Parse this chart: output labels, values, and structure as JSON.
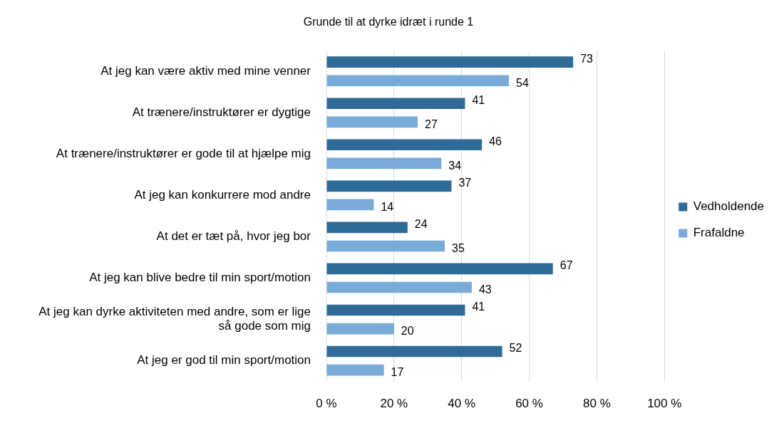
{
  "chart_data": {
    "type": "bar",
    "orientation": "horizontal",
    "title": "Grunde til at dyrke idræt i runde 1",
    "categories": [
      "At jeg kan være aktiv med mine venner",
      "At trænere/instruktører er dygtige",
      "At trænere/instruktører er gode til at hjælpe mig",
      "At jeg kan konkurrere mod andre",
      "At det er tæt på, hvor jeg bor",
      "At jeg kan blive bedre til min sport/motion",
      "At jeg kan dyrke aktiviteten med andre, som er lige så gode som mig",
      "At jeg er god til min sport/motion"
    ],
    "series": [
      {
        "name": "Vedholdende",
        "color": "#2e6b96",
        "values": [
          73,
          41,
          46,
          37,
          24,
          67,
          41,
          52
        ]
      },
      {
        "name": "Frafaldne",
        "color": "#7aaad8",
        "values": [
          54,
          27,
          34,
          14,
          35,
          43,
          20,
          17
        ]
      }
    ],
    "xlim": [
      0,
      100
    ],
    "xticks": [
      {
        "value": 0,
        "label": "0 %"
      },
      {
        "value": 20,
        "label": "20 %"
      },
      {
        "value": 40,
        "label": "40 %"
      },
      {
        "value": 60,
        "label": "60 %"
      },
      {
        "value": 80,
        "label": "80 %"
      },
      {
        "value": 100,
        "label": "100 %"
      }
    ],
    "grid": "x",
    "legend": "right",
    "data_labels": true
  }
}
